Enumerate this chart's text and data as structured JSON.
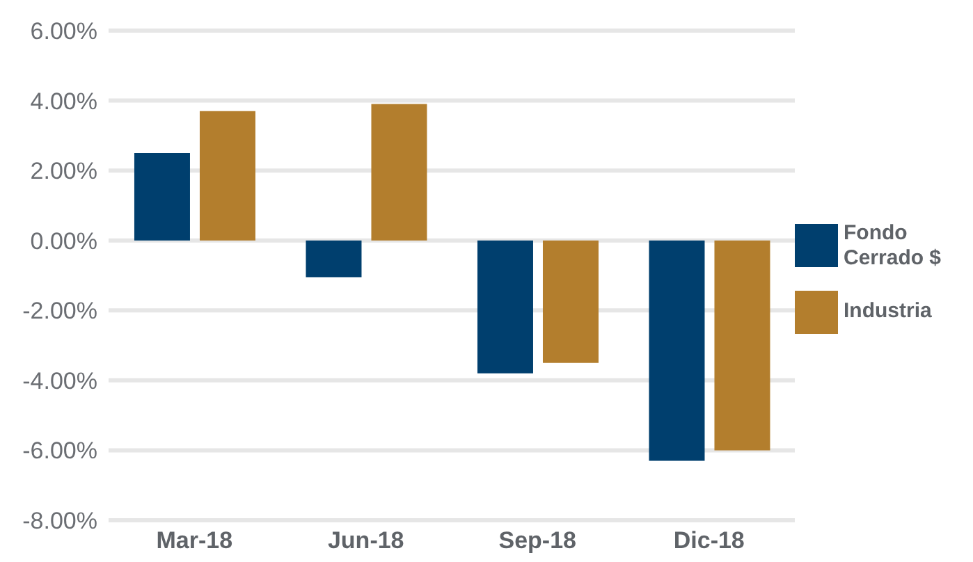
{
  "chart_data": {
    "type": "bar",
    "categories": [
      "Mar-18",
      "Jun-18",
      "Sep-18",
      "Dic-18"
    ],
    "series": [
      {
        "name": "Fondo Cerrado $",
        "color": "#003f6e",
        "values": [
          2.5,
          -1.05,
          -3.8,
          -6.3
        ]
      },
      {
        "name": "Industria",
        "color": "#b37e2d",
        "values": [
          3.7,
          3.9,
          -3.5,
          -6.0
        ]
      }
    ],
    "ylim": [
      -8,
      6
    ],
    "yticks": [
      {
        "value": -8,
        "label": "-8.00%"
      },
      {
        "value": -6,
        "label": "-6.00%"
      },
      {
        "value": -4,
        "label": "-4.00%"
      },
      {
        "value": -2,
        "label": "-2.00%"
      },
      {
        "value": 0,
        "label": "0.00%"
      },
      {
        "value": 2,
        "label": "2.00%"
      },
      {
        "value": 4,
        "label": "4.00%"
      },
      {
        "value": 6,
        "label": "6.00%"
      }
    ],
    "grid": "y",
    "legend": "right"
  }
}
